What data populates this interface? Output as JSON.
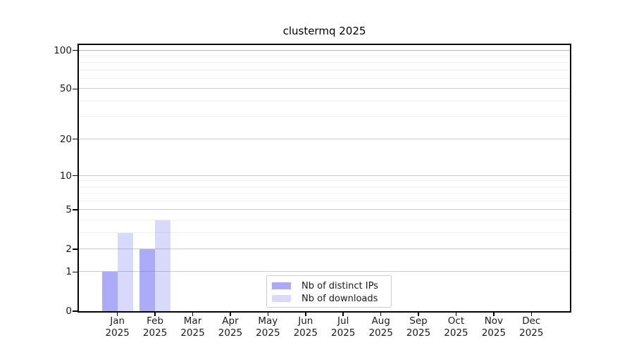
{
  "chart_data": {
    "type": "bar",
    "title": "clustermq 2025",
    "categories": [
      {
        "label": "Jan",
        "year": "2025"
      },
      {
        "label": "Feb",
        "year": "2025"
      },
      {
        "label": "Mar",
        "year": "2025"
      },
      {
        "label": "Apr",
        "year": "2025"
      },
      {
        "label": "May",
        "year": "2025"
      },
      {
        "label": "Jun",
        "year": "2025"
      },
      {
        "label": "Jul",
        "year": "2025"
      },
      {
        "label": "Aug",
        "year": "2025"
      },
      {
        "label": "Sep",
        "year": "2025"
      },
      {
        "label": "Oct",
        "year": "2025"
      },
      {
        "label": "Nov",
        "year": "2025"
      },
      {
        "label": "Dec",
        "year": "2025"
      }
    ],
    "series": [
      {
        "name": "Nb of distinct IPs",
        "color": "#aaaaf8",
        "values": [
          1,
          2,
          0,
          0,
          0,
          0,
          0,
          0,
          0,
          0,
          0,
          0
        ]
      },
      {
        "name": "Nb of downloads",
        "color": "#dadaf8",
        "values": [
          3,
          4,
          0,
          0,
          0,
          0,
          0,
          0,
          0,
          0,
          0,
          0
        ]
      }
    ],
    "xlabel": "",
    "ylabel": "",
    "yscale": "log1p",
    "ylim": [
      0,
      110
    ],
    "yticks": [
      0,
      1,
      2,
      5,
      10,
      20,
      50,
      100
    ],
    "minor_yticks": [
      3,
      4,
      6,
      7,
      8,
      9,
      30,
      40,
      60,
      70,
      80,
      90
    ],
    "grid": true,
    "legend_position": "lower center",
    "frame_color": "#000000",
    "grid_major_color": "#cdcdcd",
    "grid_minor_color": "#efefef",
    "text_color": "#1a1a1a"
  }
}
